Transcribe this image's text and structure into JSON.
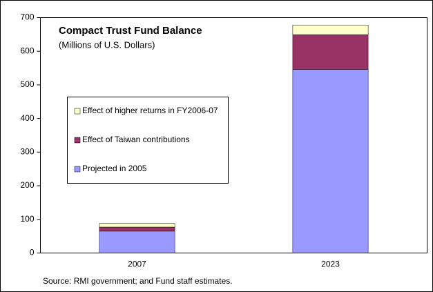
{
  "chart_data": {
    "type": "stacked-bar",
    "title": "Compact Trust Fund Balance",
    "subtitle": "(Millions of U.S. Dollars)",
    "source": "Source: RMI government; and Fund staff estimates.",
    "categories": [
      "2007",
      "2023"
    ],
    "series": [
      {
        "name": "Projected in 2005",
        "color": "#9999ff",
        "values": [
          65,
          546
        ]
      },
      {
        "name": "Effect of Taiwan contributions",
        "color": "#993366",
        "values": [
          12,
          103
        ]
      },
      {
        "name": "Effect of higher returns in FY2006-07",
        "color": "#ffffcc",
        "values": [
          11,
          29
        ]
      }
    ],
    "ylim": [
      0,
      700
    ],
    "yticks": [
      0,
      100,
      200,
      300,
      400,
      500,
      600,
      700
    ]
  }
}
